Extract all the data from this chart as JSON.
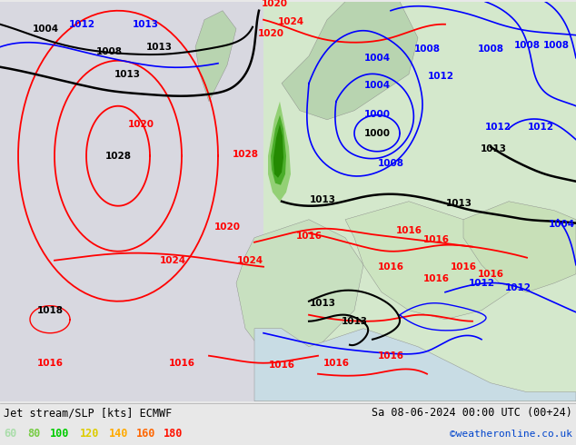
{
  "title_left": "Jet stream/SLP [kts] ECMWF",
  "title_right": "Sa 08-06-2024 00:00 UTC (00+24)",
  "credit": "©weatheronline.co.uk",
  "legend_values": [
    "60",
    "80",
    "100",
    "120",
    "140",
    "160",
    "180"
  ],
  "legend_colors": [
    "#aaddaa",
    "#77cc44",
    "#00aa00",
    "#dddd00",
    "#ffaa00",
    "#ff6600",
    "#ff2200"
  ],
  "bg_color": "#e8e8e8",
  "bottom_bg": "#e8e8e8",
  "figsize": [
    6.34,
    4.9
  ],
  "dpi": 100,
  "label_fontsize": 8.5,
  "credit_fontsize": 8,
  "legend_fontsize": 8.5,
  "map_colors": {
    "ocean": "#c8dce8",
    "land_light": "#d8e8d0",
    "land_green": "#b8d8b0",
    "land_darker": "#a8c8a0",
    "atlantic": "#d8d8e0",
    "jet_light": "#aaddaa",
    "jet_mid": "#66bb44",
    "jet_dark": "#228822"
  }
}
